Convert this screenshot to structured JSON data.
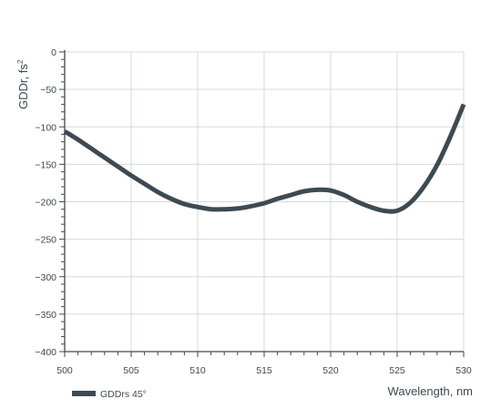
{
  "chart_data": {
    "type": "line",
    "title": "",
    "xlabel": "Wavelength, nm",
    "ylabel_base": "GDDr, fs",
    "ylabel_sup": "2",
    "xlim": [
      500,
      530
    ],
    "ylim": [
      -400,
      0
    ],
    "xticks": [
      500,
      505,
      510,
      515,
      520,
      525,
      530
    ],
    "xtick_labels": [
      "500",
      "505",
      "510",
      "515",
      "520",
      "525",
      "530"
    ],
    "yticks": [
      0,
      -50,
      -100,
      -150,
      -200,
      -250,
      -300,
      -350,
      -400
    ],
    "ytick_labels": [
      "0",
      "−50",
      "−100",
      "−150",
      "−200",
      "−250",
      "−300",
      "−350",
      "−400"
    ],
    "grid": true,
    "legend_position": "bottom-left",
    "series": [
      {
        "name": "GDDrs 45°",
        "color": "#3d4a52",
        "x": [
          500,
          501,
          502,
          503,
          504,
          505,
          506,
          507,
          508,
          509,
          510,
          511,
          512,
          513,
          514,
          515,
          516,
          517,
          518,
          519,
          520,
          521,
          522,
          523,
          524,
          525,
          526,
          527,
          528,
          529,
          530
        ],
        "y": [
          -106,
          -117,
          -129,
          -141,
          -153,
          -165,
          -176,
          -187,
          -196,
          -203,
          -207,
          -210,
          -210,
          -209,
          -206,
          -202,
          -196,
          -191,
          -186,
          -184,
          -185,
          -191,
          -200,
          -207,
          -212,
          -212,
          -201,
          -180,
          -151,
          -113,
          -70
        ]
      }
    ]
  }
}
